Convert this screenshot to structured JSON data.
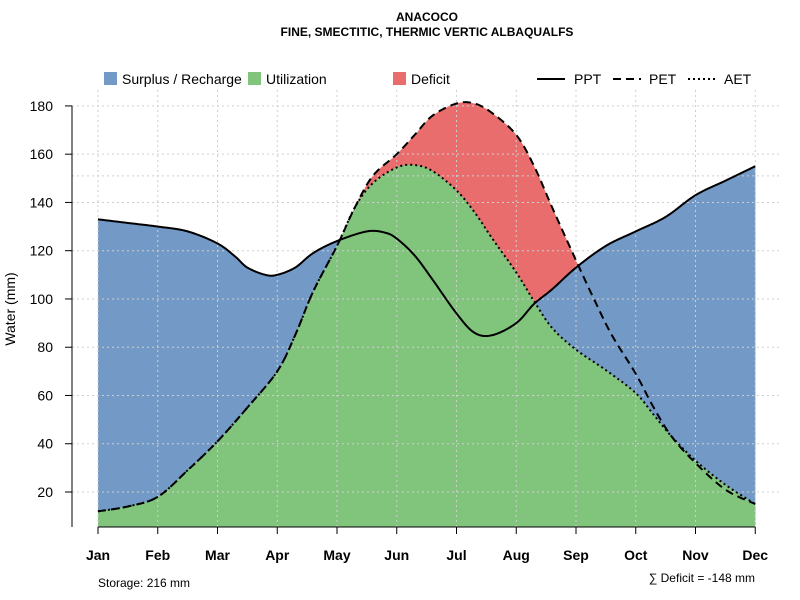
{
  "chart_data": {
    "type": "area",
    "title": "ANACOCO",
    "subtitle": "FINE, SMECTITIC, THERMIC VERTIC ALBAQUALFS",
    "xlabel": "",
    "ylabel": "Water (mm)",
    "categories": [
      "Jan",
      "Feb",
      "Mar",
      "Apr",
      "May",
      "Jun",
      "Jul",
      "Aug",
      "Sep",
      "Oct",
      "Nov",
      "Dec"
    ],
    "ylim": [
      5,
      185
    ],
    "yticks": [
      20,
      40,
      60,
      80,
      100,
      120,
      140,
      160,
      180
    ],
    "series": [
      {
        "name": "PPT",
        "style": "solid",
        "x": [
          1,
          1.5,
          2,
          2.5,
          3,
          3.3,
          3.5,
          3.8,
          4,
          4.3,
          4.6,
          5,
          5.5,
          5.8,
          6,
          6.3,
          6.6,
          7,
          7.3,
          7.6,
          8,
          8.3,
          8.6,
          9,
          9.5,
          10,
          10.5,
          11,
          11.5,
          12
        ],
        "y": [
          133,
          131.5,
          130,
          128,
          123,
          117.5,
          113,
          110,
          110,
          113,
          119,
          124,
          128,
          127.5,
          125,
          118,
          108,
          94,
          86,
          85,
          90,
          98,
          104,
          113,
          122,
          128,
          134,
          143,
          149,
          155
        ]
      },
      {
        "name": "PET",
        "style": "dashed",
        "x": [
          1,
          1.5,
          2,
          2.5,
          3,
          3.5,
          4,
          4.3,
          4.6,
          5,
          5.3,
          5.6,
          6,
          6.3,
          6.6,
          7,
          7.3,
          7.6,
          8,
          8.3,
          8.6,
          9,
          9.3,
          9.6,
          10,
          10.3,
          10.6,
          11,
          11.5,
          12
        ],
        "y": [
          12,
          14,
          18,
          29,
          41,
          55,
          70,
          85,
          103,
          122,
          138,
          151,
          160,
          168,
          176,
          181,
          181,
          177,
          168,
          155,
          138,
          116,
          100,
          85,
          69,
          55,
          43,
          32,
          21,
          15
        ]
      },
      {
        "name": "AET",
        "style": "dotted",
        "x": [
          1,
          1.5,
          2,
          2.5,
          3,
          3.5,
          4,
          4.3,
          4.6,
          5,
          5.3,
          5.6,
          6,
          6.3,
          6.6,
          7,
          7.3,
          7.6,
          8,
          8.3,
          8.6,
          9,
          9.5,
          10,
          10.3,
          10.6,
          11,
          11.5,
          12
        ],
        "y": [
          12,
          14,
          18,
          29,
          41,
          55,
          70,
          85,
          103,
          122,
          138,
          148,
          154.5,
          155.5,
          153,
          145,
          136,
          125,
          111,
          99,
          88,
          79,
          70.5,
          61,
          52,
          43,
          33,
          23,
          15
        ]
      }
    ],
    "legend": [
      {
        "label": "Surplus / Recharge",
        "kind": "fill",
        "color": "#7399c6"
      },
      {
        "label": "Utilization",
        "kind": "fill",
        "color": "#81c57d"
      },
      {
        "label": "Deficit",
        "kind": "fill",
        "color": "#ea6d6d"
      },
      {
        "label": "PPT",
        "kind": "line",
        "style": "solid"
      },
      {
        "label": "PET",
        "kind": "line",
        "style": "dashed"
      },
      {
        "label": "AET",
        "kind": "line",
        "style": "dotted"
      }
    ],
    "legend_position": "top",
    "colors": {
      "surplus": "#7399c6",
      "utilization": "#81c57d",
      "deficit": "#ea6d6d",
      "line": "#000000"
    },
    "grid": true,
    "extra_gridlines_y": [
      60,
      151
    ]
  },
  "footer": {
    "storage": "Storage: 216 mm",
    "deficit": "∑ Deficit = -148 mm"
  }
}
